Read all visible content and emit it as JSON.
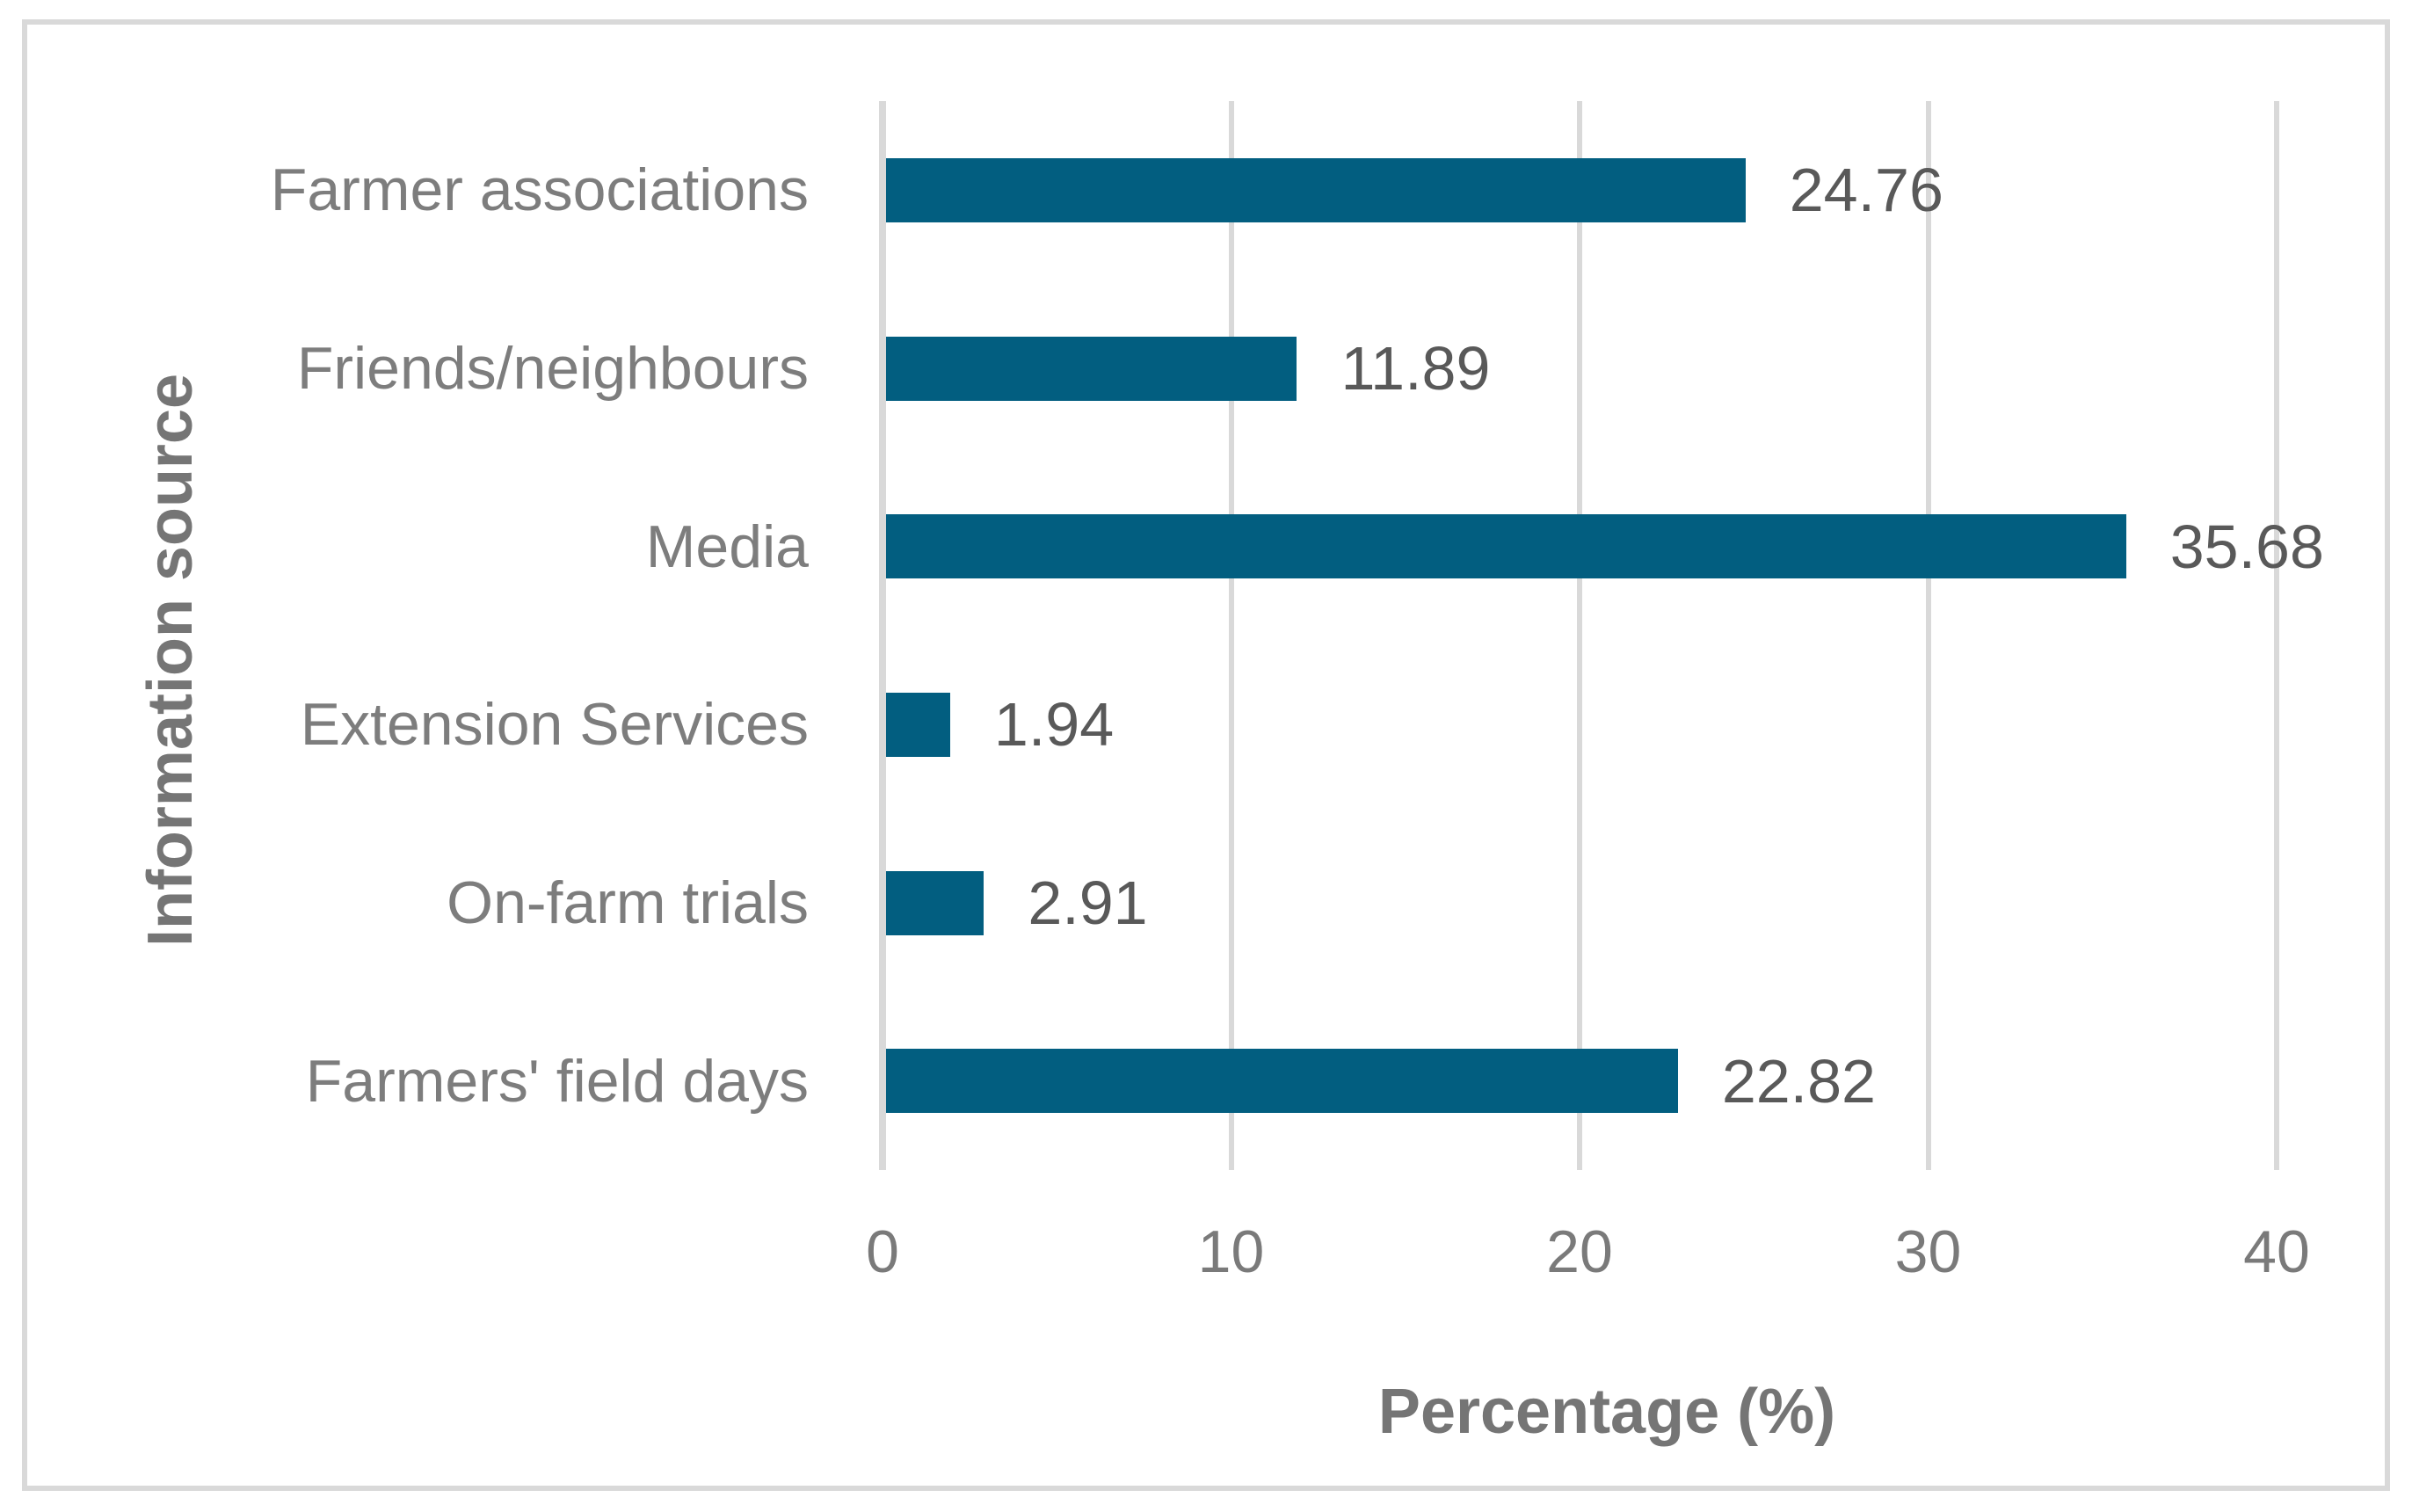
{
  "chart_data": {
    "type": "bar",
    "orientation": "horizontal",
    "title": "",
    "categories": [
      "Farmer associations",
      "Friends/neighbours",
      "Media",
      "Extension Services",
      "On-farm trials",
      "Farmers' field days"
    ],
    "values": [
      24.76,
      11.89,
      35.68,
      1.94,
      2.91,
      22.82
    ],
    "value_labels": [
      "24.76",
      "11.89",
      "35.68",
      "1.94",
      "2.91",
      "22.82"
    ],
    "xlabel": "Percentage (%)",
    "ylabel": "Information source",
    "x_ticks": [
      "0",
      "10",
      "20",
      "30",
      "40"
    ],
    "xlim": [
      0,
      40
    ],
    "grid": "vertical-gridlines-on",
    "legend": "none",
    "colors": {
      "bar_fill": "#025E80",
      "gridline": "#D9D9D9",
      "frame_border": "#D9D9D9",
      "category_label": "#7D7D7D",
      "tick_label": "#7A7A7A",
      "value_label": "#595959",
      "axis_title": "#757575",
      "background": "#FFFFFF"
    }
  }
}
